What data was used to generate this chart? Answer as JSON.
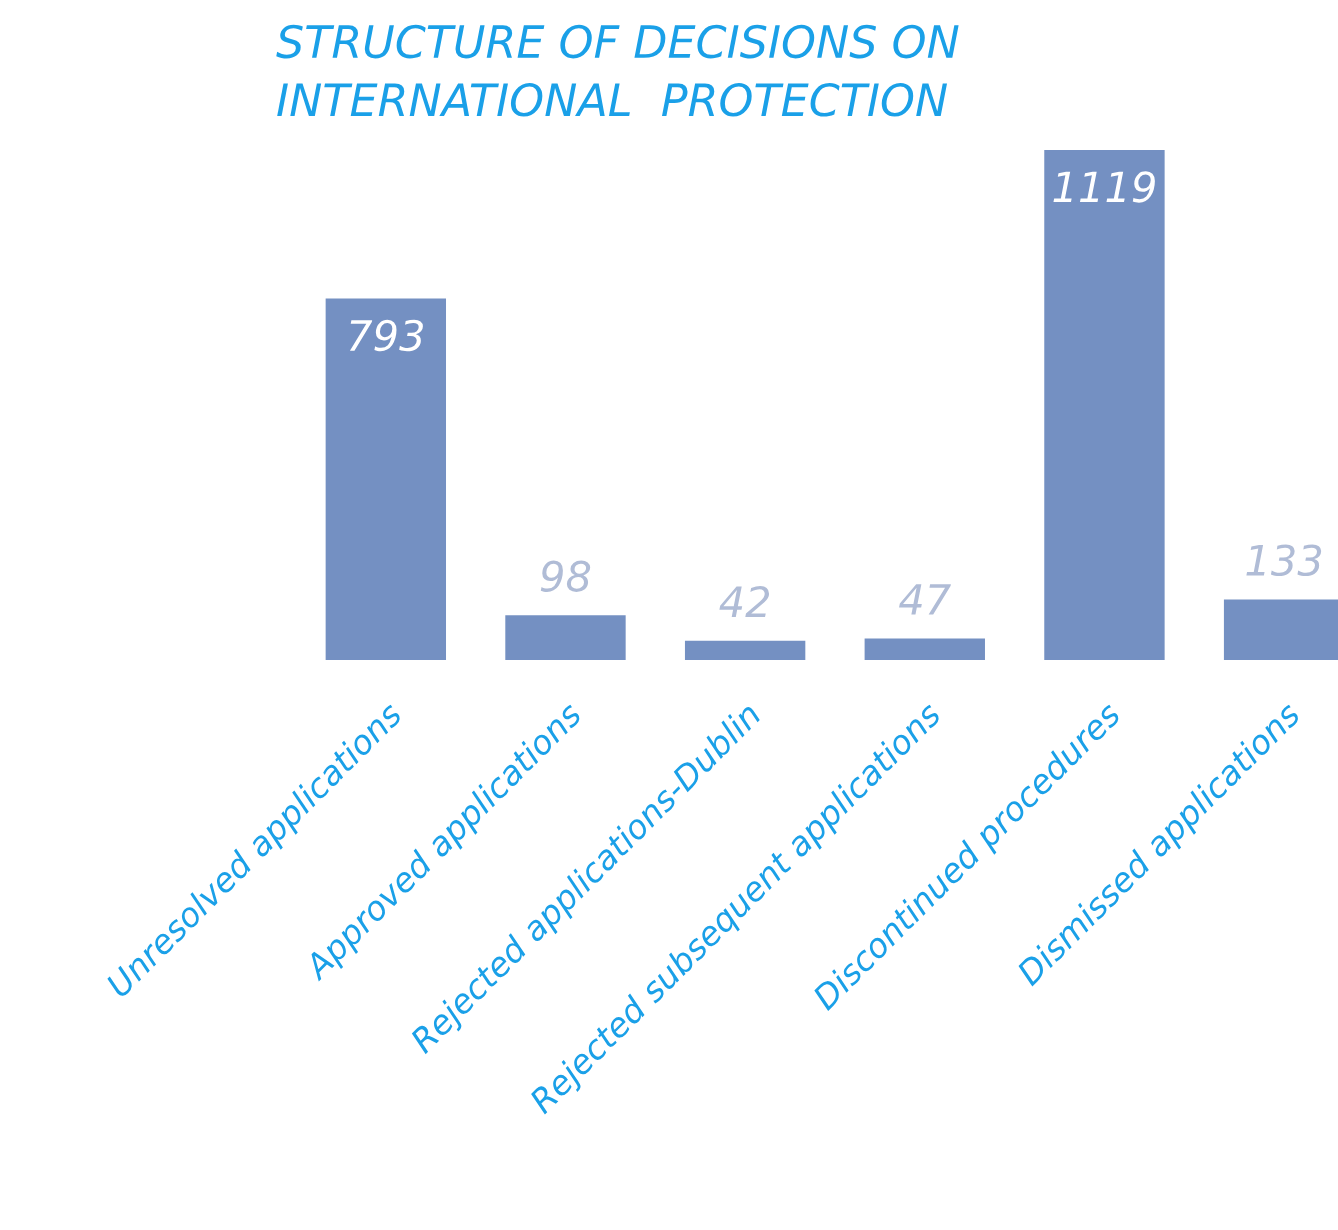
{
  "chart_data": {
    "type": "bar",
    "title": "STRUCTURE OF DECISIONS ON\nINTERNATIONAL  PROTECTION",
    "categories": [
      "Unresolved applications",
      "Approved applications",
      "Rejected applications-Dublin",
      "Rejected subsequent applications",
      "Discontinued procedures",
      "Dismissed applications"
    ],
    "values": [
      793,
      98,
      42,
      47,
      1119,
      133
    ],
    "color": "#7490c2",
    "data_labels": true,
    "grid": false,
    "legend": false
  }
}
